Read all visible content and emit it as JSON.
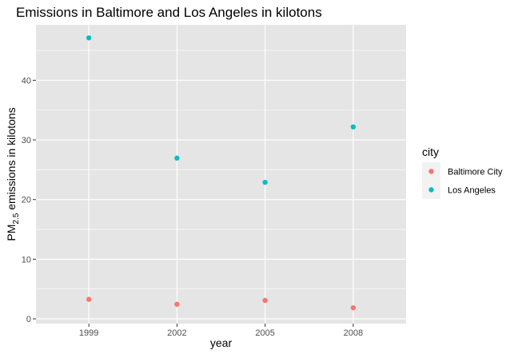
{
  "chart_data": {
    "type": "scatter",
    "title": "Emissions in Baltimore and Los Angeles in kilotons",
    "xlabel": "year",
    "ylabel": {
      "prefix": "PM",
      "subscript": "2.5",
      "suffix": " emissions in kilotons"
    },
    "x": [
      "1999",
      "2002",
      "2005",
      "2008"
    ],
    "ylim": [
      -0.8,
      49.3
    ],
    "yticks": [
      0,
      10,
      20,
      30,
      40
    ],
    "grid": true,
    "legend": {
      "title": "city",
      "placement": "right"
    },
    "series": [
      {
        "name": "Baltimore City",
        "color": "#F8766D",
        "values": [
          3.27,
          2.45,
          3.09,
          1.86
        ]
      },
      {
        "name": "Los Angeles",
        "color": "#00BFC4",
        "values": [
          47.1,
          26.95,
          22.89,
          32.18
        ]
      }
    ],
    "colors": {
      "panel": "#E5E5E5",
      "grid_major": "#FFFFFF",
      "legend_key": "#F2F2F2"
    }
  }
}
